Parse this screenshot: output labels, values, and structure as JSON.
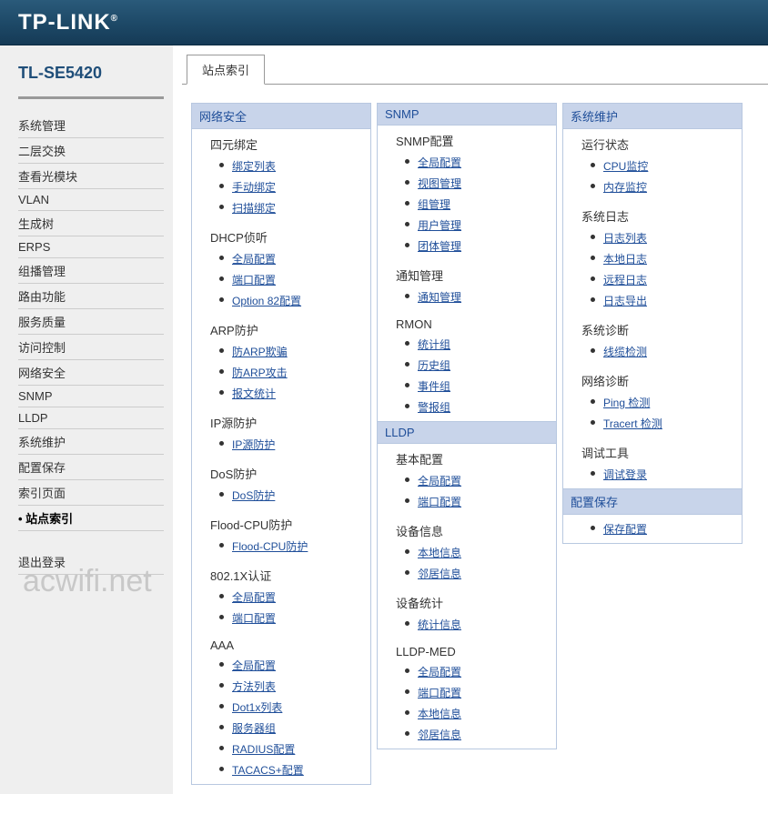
{
  "brand": "TP-LINK",
  "model": "TL-SE5420",
  "watermark": "acwifi.net",
  "tab_label": "站点索引",
  "logout_label": "退出登录",
  "nav": [
    "系统管理",
    "二层交换",
    "查看光模块",
    "VLAN",
    "生成树",
    "ERPS",
    "组播管理",
    "路由功能",
    "服务质量",
    "访问控制",
    "网络安全",
    "SNMP",
    "LLDP",
    "系统维护",
    "配置保存",
    "索引页面",
    "站点索引"
  ],
  "nav_active_index": 16,
  "columns": [
    [
      {
        "header": "网络安全",
        "groups": [
          {
            "title": "四元绑定",
            "links": [
              "绑定列表",
              "手动绑定",
              "扫描绑定"
            ]
          },
          {
            "title": "DHCP侦听",
            "links": [
              "全局配置",
              "端口配置",
              "Option 82配置"
            ]
          },
          {
            "title": "ARP防护",
            "links": [
              "防ARP欺骗",
              "防ARP攻击",
              "报文统计"
            ]
          },
          {
            "title": "IP源防护",
            "links": [
              "IP源防护"
            ]
          },
          {
            "title": "DoS防护",
            "links": [
              "DoS防护"
            ]
          },
          {
            "title": "Flood-CPU防护",
            "links": [
              "Flood-CPU防护"
            ]
          },
          {
            "title": "802.1X认证",
            "links": [
              "全局配置",
              "端口配置"
            ]
          },
          {
            "title": "AAA",
            "links": [
              "全局配置",
              "方法列表",
              "Dot1x列表",
              "服务器组",
              "RADIUS配置",
              "TACACS+配置"
            ]
          }
        ]
      }
    ],
    [
      {
        "header": "SNMP",
        "groups": [
          {
            "title": "SNMP配置",
            "links": [
              "全局配置",
              "视图管理",
              "组管理",
              "用户管理",
              "团体管理"
            ]
          },
          {
            "title": "通知管理",
            "links": [
              "通知管理"
            ]
          },
          {
            "title": "RMON",
            "links": [
              "统计组",
              "历史组",
              "事件组",
              "警报组"
            ]
          }
        ]
      },
      {
        "header": "LLDP",
        "groups": [
          {
            "title": "基本配置",
            "links": [
              "全局配置",
              "端口配置"
            ]
          },
          {
            "title": "设备信息",
            "links": [
              "本地信息",
              "邻居信息"
            ]
          },
          {
            "title": "设备统计",
            "links": [
              "统计信息"
            ]
          },
          {
            "title": "LLDP-MED",
            "links": [
              "全局配置",
              "端口配置",
              "本地信息",
              "邻居信息"
            ]
          }
        ]
      }
    ],
    [
      {
        "header": "系统维护",
        "groups": [
          {
            "title": "运行状态",
            "links": [
              "CPU监控",
              "内存监控"
            ]
          },
          {
            "title": "系统日志",
            "links": [
              "日志列表",
              "本地日志",
              "远程日志",
              "日志导出"
            ]
          },
          {
            "title": "系统诊断",
            "links": [
              "线缆检测"
            ]
          },
          {
            "title": "网络诊断",
            "links": [
              "Ping 检测",
              "Tracert 检测"
            ]
          },
          {
            "title": "调试工具",
            "links": [
              "调试登录"
            ]
          }
        ]
      },
      {
        "header": "配置保存",
        "groups": [
          {
            "title": "",
            "links": [
              "保存配置"
            ]
          }
        ]
      }
    ]
  ]
}
